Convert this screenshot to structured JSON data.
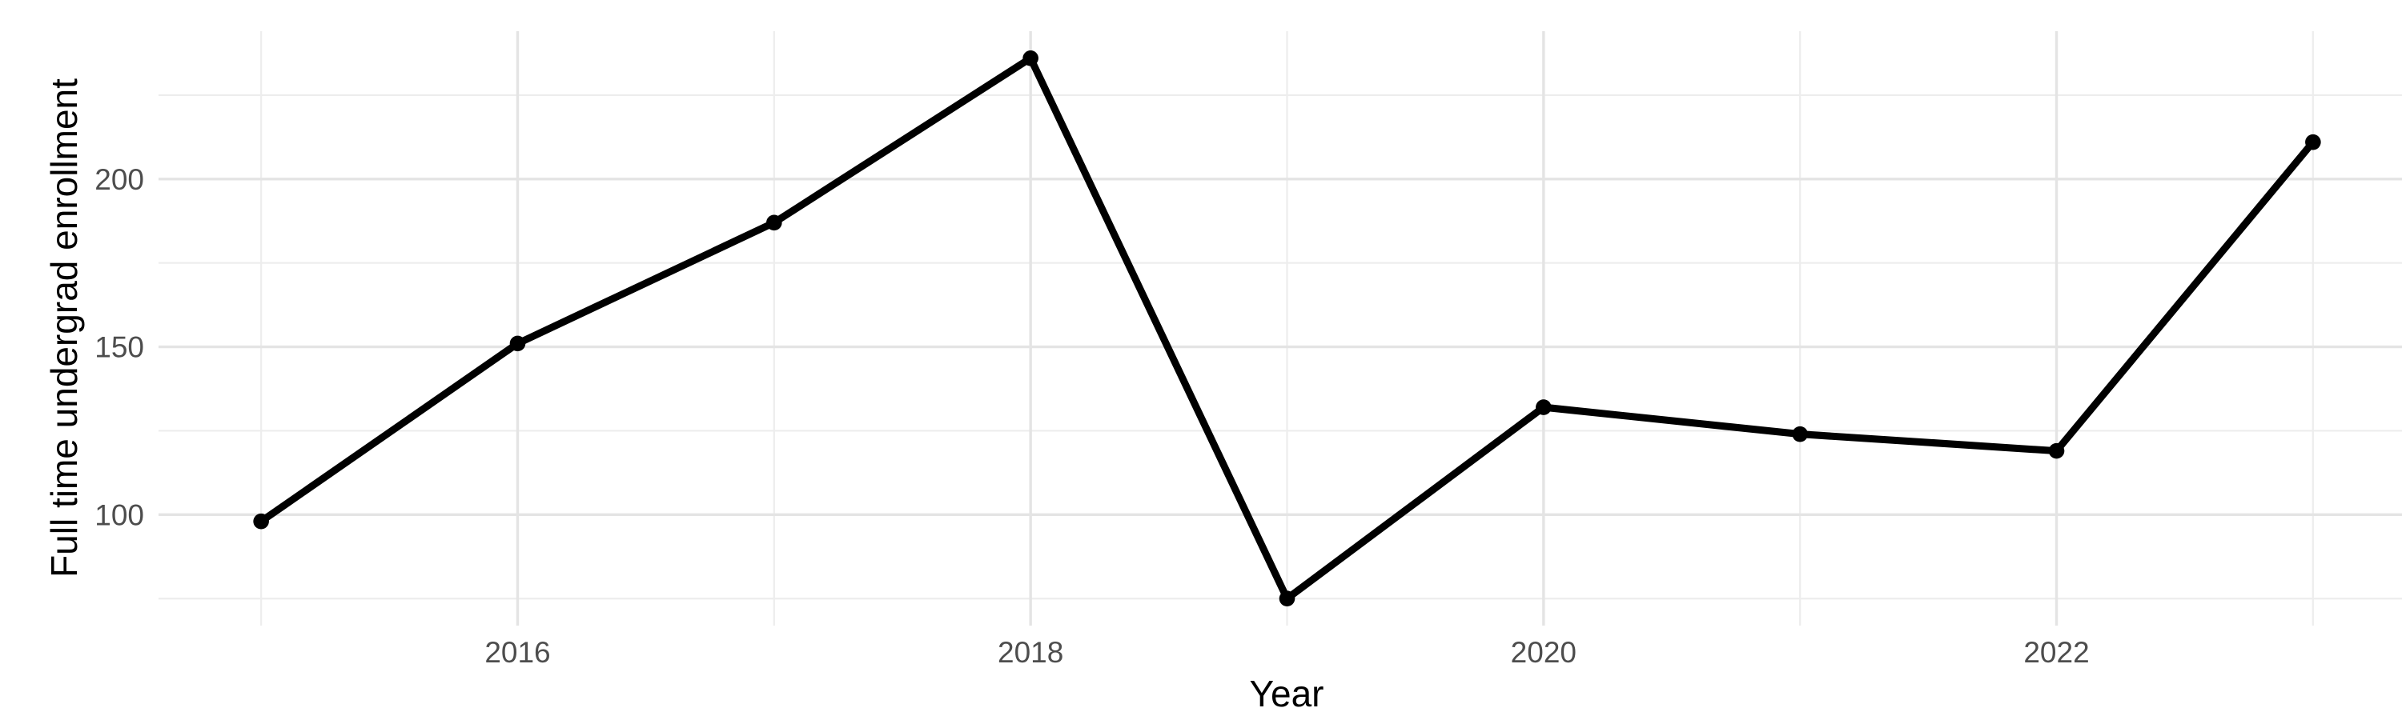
{
  "chart_data": {
    "type": "line",
    "title": "",
    "xlabel": "Year",
    "ylabel": "Full time undergrad enrollment",
    "x": [
      2015,
      2016,
      2017,
      2018,
      2019,
      2020,
      2021,
      2022,
      2023
    ],
    "y": [
      98,
      151,
      187,
      236,
      75,
      132,
      124,
      119,
      211
    ],
    "x_major_ticks": [
      2016,
      2018,
      2020,
      2022
    ],
    "x_minor_ticks": [
      2015,
      2017,
      2019,
      2021,
      2023
    ],
    "y_major_ticks": [
      100,
      150,
      200
    ],
    "y_minor_ticks": [
      75,
      125,
      175,
      225
    ],
    "xlim": [
      2014.6,
      2023.4
    ],
    "ylim": [
      66.95,
      244.05
    ],
    "grid": "major-and-minor, no axis lines, no tick marks, white background",
    "legend": "none",
    "marker": "filled-circle",
    "colors": {
      "line": "#000000",
      "point": "#000000",
      "grid_major": "#E4E4E4",
      "grid_minor": "#EDEDED",
      "tick_label": "#4D4D4D",
      "axis_title": "#000000",
      "background": "#FFFFFF"
    }
  }
}
